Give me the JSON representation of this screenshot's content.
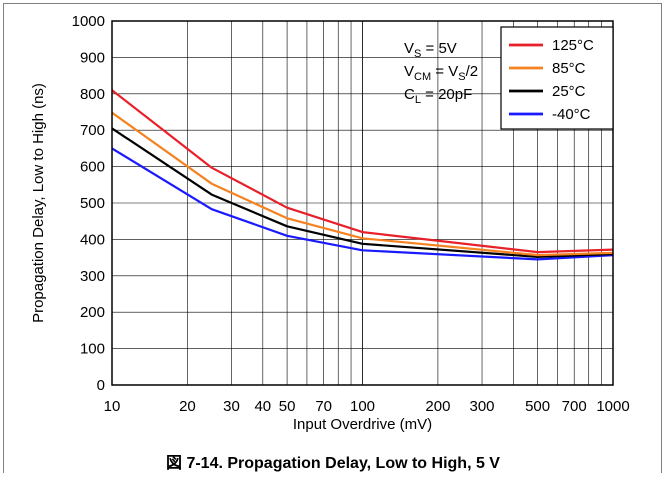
{
  "caption": "図 7-14. Propagation Delay, Low to High, 5 V",
  "chart_data": {
    "type": "line",
    "xlabel": "Input Overdrive (mV)",
    "ylabel": "Propagation Delay, Low to High (ns)",
    "x_scale": "log",
    "xlim": [
      10,
      1000
    ],
    "ylim": [
      0,
      1000
    ],
    "x_ticks": [
      10,
      20,
      30,
      40,
      50,
      70,
      100,
      200,
      300,
      500,
      700,
      1000
    ],
    "x_tick_labels": [
      "10",
      "20",
      "30",
      "40",
      "50",
      "70",
      "100",
      "200",
      "300",
      "500",
      "700",
      "1000"
    ],
    "y_ticks": [
      0,
      100,
      200,
      300,
      400,
      500,
      600,
      700,
      800,
      900,
      1000
    ],
    "grid": true,
    "legend_position": "top-right",
    "conditions": {
      "vs": {
        "main": "V",
        "sub": "S",
        "rest": " = 5V"
      },
      "vcm": {
        "main": "V",
        "sub": "CM",
        "mid": " = V",
        "sub2": "S",
        "rest": "/2"
      },
      "cl": {
        "main": "C",
        "sub": "L",
        "rest": " = 20pF"
      }
    },
    "series": [
      {
        "name": "125°C",
        "color": "#e8202a",
        "x": [
          10,
          25,
          50,
          100,
          500,
          1000
        ],
        "values": [
          810,
          597,
          487,
          420,
          365,
          372
        ]
      },
      {
        "name": "85°C",
        "color": "#f58220",
        "x": [
          10,
          25,
          50,
          100,
          500,
          1000
        ],
        "values": [
          748,
          553,
          458,
          403,
          357,
          363
        ]
      },
      {
        "name": "25°C",
        "color": "#000000",
        "x": [
          10,
          25,
          50,
          100,
          500,
          1000
        ],
        "values": [
          705,
          523,
          436,
          388,
          352,
          360
        ]
      },
      {
        "name": "-40°C",
        "color": "#1a1aff",
        "x": [
          10,
          25,
          50,
          100,
          500,
          1000
        ],
        "values": [
          650,
          483,
          410,
          370,
          345,
          357
        ]
      }
    ]
  }
}
